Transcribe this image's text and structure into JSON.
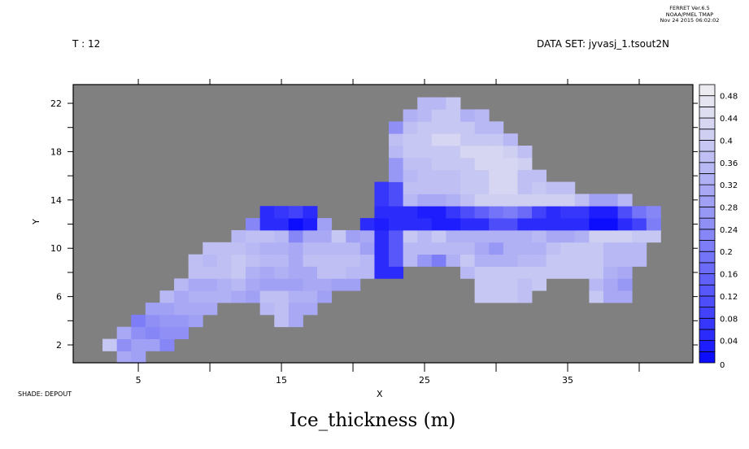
{
  "header": {
    "ferret_lines": [
      "FERRET  Ver.6.5",
      "NOAA/PMEL TMAP",
      "Nov 24 2015 06:02:02"
    ],
    "time_label": "T : 12",
    "dataset_label": "DATA SET: jyvasj_1.tsout2N",
    "shade_label": "SHADE: DEPOUT"
  },
  "chart_data": {
    "type": "heatmap",
    "title": "Ice_thickness (m)",
    "xlabel": "X",
    "ylabel": "Y",
    "xlim": [
      0.45,
      43.75
    ],
    "ylim": [
      0.52,
      23.55
    ],
    "x_ticks": [
      5,
      10,
      15,
      20,
      25,
      30,
      35,
      40
    ],
    "x_tick_labels": [
      "5",
      "15",
      "25",
      "35"
    ],
    "y_ticks": [
      2,
      4,
      6,
      8,
      10,
      12,
      14,
      16,
      18,
      20,
      22
    ],
    "y_tick_labels": [
      "2",
      "6",
      "10",
      "14",
      "18",
      "22"
    ],
    "background_color": "#808080",
    "colorbar": {
      "min": 0,
      "max": 0.5,
      "step": 0.02,
      "labels": [
        "0",
        "0.04",
        "0.08",
        "0.12",
        "0.16",
        "0.2",
        "0.24",
        "0.28",
        "0.32",
        "0.36",
        "0.4",
        "0.44",
        "0.48"
      ],
      "low_color": "#0000ff",
      "high_color": "#f0f0f0"
    },
    "rows": [
      {
        "y": 1,
        "x0": 4,
        "v": [
          0.3,
          0.28
        ]
      },
      {
        "y": 2,
        "x0": 3,
        "v": [
          0.38,
          0.24,
          0.28,
          0.28,
          0.22
        ]
      },
      {
        "y": 3,
        "x0": 4,
        "v": [
          0.3,
          0.24,
          0.22,
          0.24,
          0.24
        ]
      },
      {
        "y": 4,
        "x0": 5,
        "v": [
          0.2,
          0.24,
          0.26,
          0.26,
          0.28
        ]
      },
      {
        "y": 4,
        "x0": 15,
        "v": [
          0.36,
          0.3
        ]
      },
      {
        "y": 5,
        "x0": 6,
        "v": [
          0.28,
          0.28,
          0.3,
          0.3,
          0.3
        ]
      },
      {
        "y": 5,
        "x0": 14,
        "v": [
          0.34,
          0.36,
          0.3,
          0.3
        ]
      },
      {
        "y": 6,
        "x0": 7,
        "v": [
          0.34,
          0.3,
          0.32,
          0.32,
          0.32,
          0.3,
          0.28,
          0.36,
          0.36,
          0.32,
          0.32,
          0.28
        ]
      },
      {
        "y": 6,
        "x0": 29,
        "v": [
          0.38,
          0.38,
          0.38,
          0.36
        ]
      },
      {
        "y": 6,
        "x0": 37,
        "v": [
          0.38,
          0.3,
          0.3
        ]
      },
      {
        "y": 7,
        "x0": 8,
        "v": [
          0.34,
          0.3,
          0.3,
          0.32,
          0.34,
          0.3,
          0.28,
          0.28,
          0.28,
          0.3,
          0.3,
          0.28,
          0.28
        ]
      },
      {
        "y": 7,
        "x0": 29,
        "v": [
          0.38,
          0.38,
          0.38,
          0.36,
          0.38
        ]
      },
      {
        "y": 7,
        "x0": 37,
        "v": [
          0.34,
          0.3,
          0.26
        ]
      },
      {
        "y": 8,
        "x0": 9,
        "v": [
          0.36,
          0.36,
          0.36,
          0.38,
          0.32,
          0.3,
          0.32,
          0.3,
          0.3,
          0.36,
          0.36,
          0.34,
          0.34,
          0.04,
          0.04
        ]
      },
      {
        "y": 8,
        "x0": 28,
        "v": [
          0.34,
          0.38,
          0.38,
          0.38,
          0.38,
          0.38,
          0.38,
          0.38,
          0.38,
          0.38,
          0.32,
          0.3
        ]
      },
      {
        "y": 9,
        "x0": 9,
        "v": [
          0.36,
          0.34,
          0.36,
          0.38,
          0.36,
          0.34,
          0.34,
          0.3,
          0.36,
          0.36,
          0.36,
          0.36,
          0.34,
          0.04,
          0.12,
          0.34,
          0.26,
          0.2,
          0.32,
          0.38,
          0.32,
          0.32,
          0.32,
          0.34,
          0.34,
          0.38,
          0.38,
          0.38,
          0.38,
          0.34,
          0.34,
          0.34
        ]
      },
      {
        "y": 10,
        "x0": 10,
        "v": [
          0.36,
          0.36,
          0.36,
          0.34,
          0.32,
          0.32,
          0.3,
          0.34,
          0.34,
          0.34,
          0.34,
          0.28,
          0.04,
          0.12,
          0.34,
          0.34,
          0.34,
          0.34,
          0.34,
          0.3,
          0.26,
          0.32,
          0.32,
          0.32,
          0.36,
          0.38,
          0.38,
          0.38,
          0.34,
          0.34,
          0.34
        ]
      },
      {
        "y": 11,
        "x0": 12,
        "v": [
          0.34,
          0.36,
          0.36,
          0.34,
          0.22,
          0.3,
          0.3,
          0.38,
          0.28,
          0.3,
          0.04,
          0.12,
          0.38,
          0.34,
          0.38,
          0.32,
          0.32,
          0.32,
          0.32,
          0.32,
          0.32,
          0.34,
          0.3,
          0.3,
          0.32,
          0.4,
          0.4,
          0.4,
          0.38,
          0.38
        ]
      },
      {
        "y": 12,
        "x0": 13,
        "v": [
          0.22,
          0.04,
          0.04,
          0.0,
          0.02,
          0.28
        ]
      },
      {
        "y": 12,
        "x0": 21,
        "v": [
          0.04,
          0.02,
          0.04,
          0.04,
          0.04,
          0.02,
          0.02,
          0.04,
          0.04,
          0.1,
          0.1,
          0.04,
          0.04,
          0.04,
          0.04,
          0.04,
          0.0,
          0.0,
          0.04,
          0.08,
          0.2
        ]
      },
      {
        "y": 13,
        "x0": 14,
        "v": [
          0.04,
          0.06,
          0.08,
          0.04
        ]
      },
      {
        "y": 13,
        "x0": 22,
        "v": [
          0.04,
          0.04,
          0.04,
          0.02,
          0.02,
          0.06,
          0.1,
          0.14,
          0.18,
          0.2,
          0.16,
          0.08,
          0.04,
          0.06,
          0.06,
          0.02,
          0.02,
          0.1,
          0.18,
          0.22
        ]
      },
      {
        "y": 14,
        "x0": 22,
        "v": [
          0.06,
          0.1,
          0.34,
          0.3,
          0.3,
          0.32,
          0.36,
          0.4,
          0.4,
          0.4,
          0.4,
          0.4,
          0.4,
          0.4,
          0.36,
          0.28,
          0.28,
          0.34
        ]
      },
      {
        "y": 15,
        "x0": 22,
        "v": [
          0.06,
          0.1,
          0.36,
          0.36,
          0.36,
          0.36,
          0.38,
          0.38,
          0.42,
          0.42,
          0.36,
          0.38,
          0.36,
          0.36
        ]
      },
      {
        "y": 16,
        "x0": 23,
        "v": [
          0.26,
          0.34,
          0.36,
          0.36,
          0.36,
          0.38,
          0.38,
          0.42,
          0.42,
          0.36,
          0.36
        ]
      },
      {
        "y": 17,
        "x0": 23,
        "v": [
          0.26,
          0.36,
          0.36,
          0.38,
          0.38,
          0.38,
          0.42,
          0.42,
          0.42,
          0.4
        ]
      },
      {
        "y": 18,
        "x0": 23,
        "v": [
          0.34,
          0.38,
          0.38,
          0.38,
          0.38,
          0.42,
          0.42,
          0.42,
          0.4,
          0.36
        ]
      },
      {
        "y": 19,
        "x0": 23,
        "v": [
          0.36,
          0.38,
          0.38,
          0.42,
          0.42,
          0.38,
          0.38,
          0.38,
          0.34
        ]
      },
      {
        "y": 20,
        "x0": 23,
        "v": [
          0.24,
          0.36,
          0.38,
          0.38,
          0.38,
          0.38,
          0.34,
          0.34
        ]
      },
      {
        "y": 21,
        "x0": 24,
        "v": [
          0.32,
          0.34,
          0.38,
          0.38,
          0.32,
          0.34
        ]
      },
      {
        "y": 22,
        "x0": 25,
        "v": [
          0.34,
          0.34,
          0.38
        ]
      }
    ]
  }
}
